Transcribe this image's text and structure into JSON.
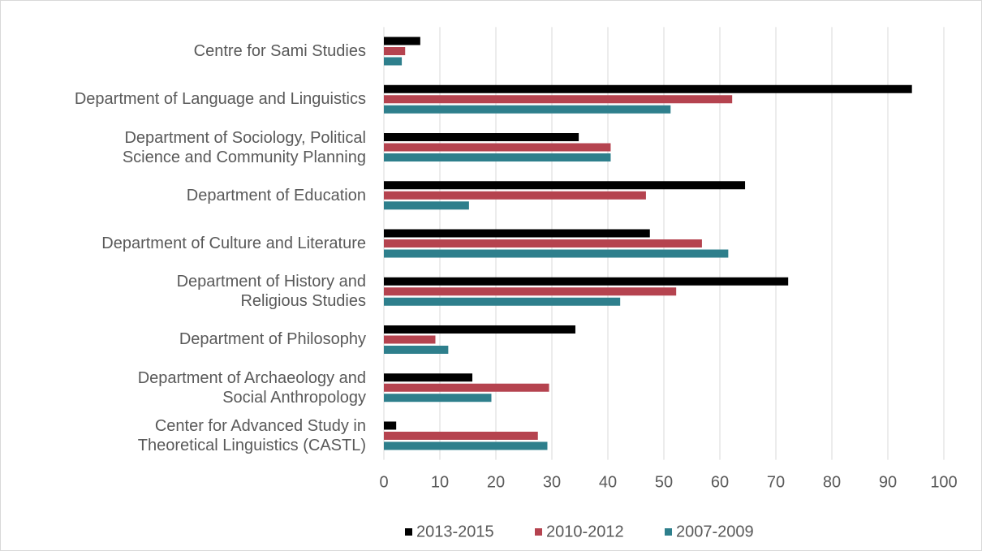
{
  "chart_data": {
    "type": "barh",
    "categories": [
      "Centre for Sami Studies",
      "Department of Language and Linguistics",
      "Department of Sociology, Political\nScience and Community Planning",
      "Department of Education",
      "Department of Culture and Literature",
      "Department of History and\nReligious Studies",
      "Department of Philosophy",
      "Department of Archaeology and\nSocial Anthropology",
      "Center for Advanced Study in\nTheoretical Linguistics (CASTL)"
    ],
    "series": [
      {
        "name": "2013-2015",
        "color": "#000000",
        "values": [
          6.5,
          94.3,
          34.8,
          64.5,
          47.5,
          72.2,
          34.2,
          15.8,
          2.2
        ]
      },
      {
        "name": "2010-2012",
        "color": "#b5434f",
        "values": [
          3.8,
          62.2,
          40.5,
          46.8,
          56.8,
          52.2,
          9.2,
          29.5,
          27.5
        ]
      },
      {
        "name": "2007-2009",
        "color": "#2e7f8c",
        "values": [
          3.2,
          51.2,
          40.5,
          15.2,
          61.5,
          42.2,
          11.5,
          19.2,
          29.2
        ]
      }
    ],
    "xlim": [
      0,
      100
    ],
    "xticks": [
      0,
      10,
      20,
      30,
      40,
      50,
      60,
      70,
      80,
      90,
      100
    ],
    "grid": true,
    "legend": "bottom"
  }
}
